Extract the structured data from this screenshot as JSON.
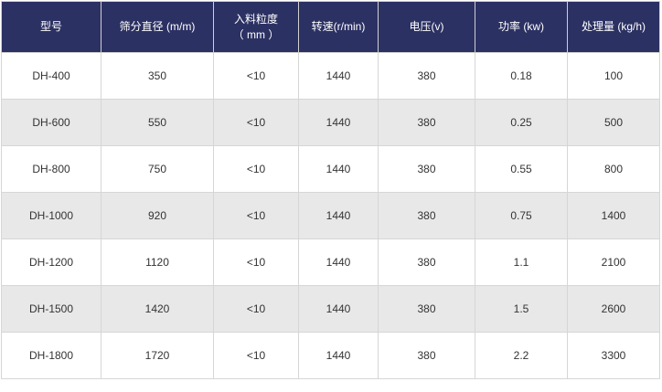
{
  "table": {
    "header": [
      "型号",
      "筛分直径 (m/m)",
      "入料粒度\n（ mm ）",
      "转速(r/min)",
      "电压(v)",
      "功率 (kw)",
      "处理量 (kg/h)"
    ],
    "rows": [
      [
        "DH-400",
        "350",
        "<10",
        "1440",
        "380",
        "0.18",
        "100"
      ],
      [
        "DH-600",
        "550",
        "<10",
        "1440",
        "380",
        "0.25",
        "500"
      ],
      [
        "DH-800",
        "750",
        "<10",
        "1440",
        "380",
        "0.55",
        "800"
      ],
      [
        "DH-1000",
        "920",
        "<10",
        "1440",
        "380",
        "0.75",
        "1400"
      ],
      [
        "DH-1200",
        "1120",
        "<10",
        "1440",
        "380",
        "1.1",
        "2100"
      ],
      [
        "DH-1500",
        "1420",
        "<10",
        "1440",
        "380",
        "1.5",
        "2600"
      ],
      [
        "DH-1800",
        "1720",
        "<10",
        "1440",
        "380",
        "2.2",
        "3300"
      ]
    ]
  }
}
